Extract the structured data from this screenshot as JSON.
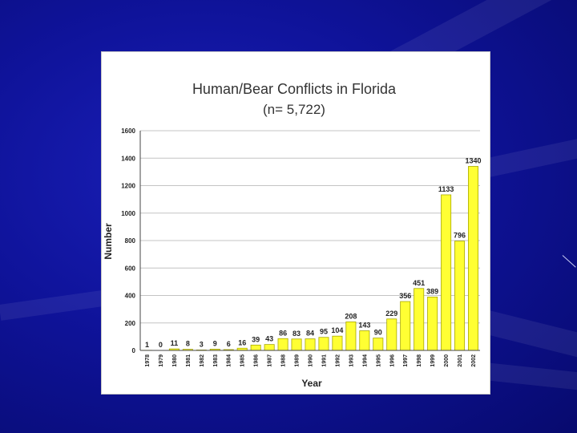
{
  "slide": {
    "background": "#0f139a",
    "accent_line": "#c9cdf3"
  },
  "chart_data": {
    "type": "bar",
    "title": "Human/Bear Conflicts in Florida",
    "subtitle": "(n= 5,722)",
    "xlabel": "Year",
    "ylabel": "Number",
    "ylim": [
      0,
      1600
    ],
    "yticks": [
      0,
      200,
      400,
      600,
      800,
      1000,
      1200,
      1400,
      1600
    ],
    "grid": true,
    "bar_color": "#ffff33",
    "bar_border": "#a8a800",
    "categories": [
      "1978",
      "1979",
      "1980",
      "1981",
      "1982",
      "1983",
      "1984",
      "1985",
      "1986",
      "1987",
      "1988",
      "1989",
      "1990",
      "1991",
      "1992",
      "1993",
      "1994",
      "1995",
      "1996",
      "1997",
      "1998",
      "1999",
      "2000",
      "2001",
      "2002"
    ],
    "values": [
      1,
      0,
      11,
      8,
      3,
      9,
      6,
      16,
      39,
      43,
      86,
      83,
      84,
      95,
      104,
      208,
      143,
      90,
      229,
      356,
      451,
      389,
      1133,
      796,
      1340
    ],
    "data_labels": [
      "1",
      "0",
      "11",
      "8",
      "3",
      "9",
      "6",
      "16",
      "39",
      "43",
      "86",
      "83",
      "84",
      "95",
      "104",
      "208",
      "143",
      "90",
      "229",
      "356",
      "451",
      "389",
      "1133",
      "796",
      "1340"
    ]
  }
}
